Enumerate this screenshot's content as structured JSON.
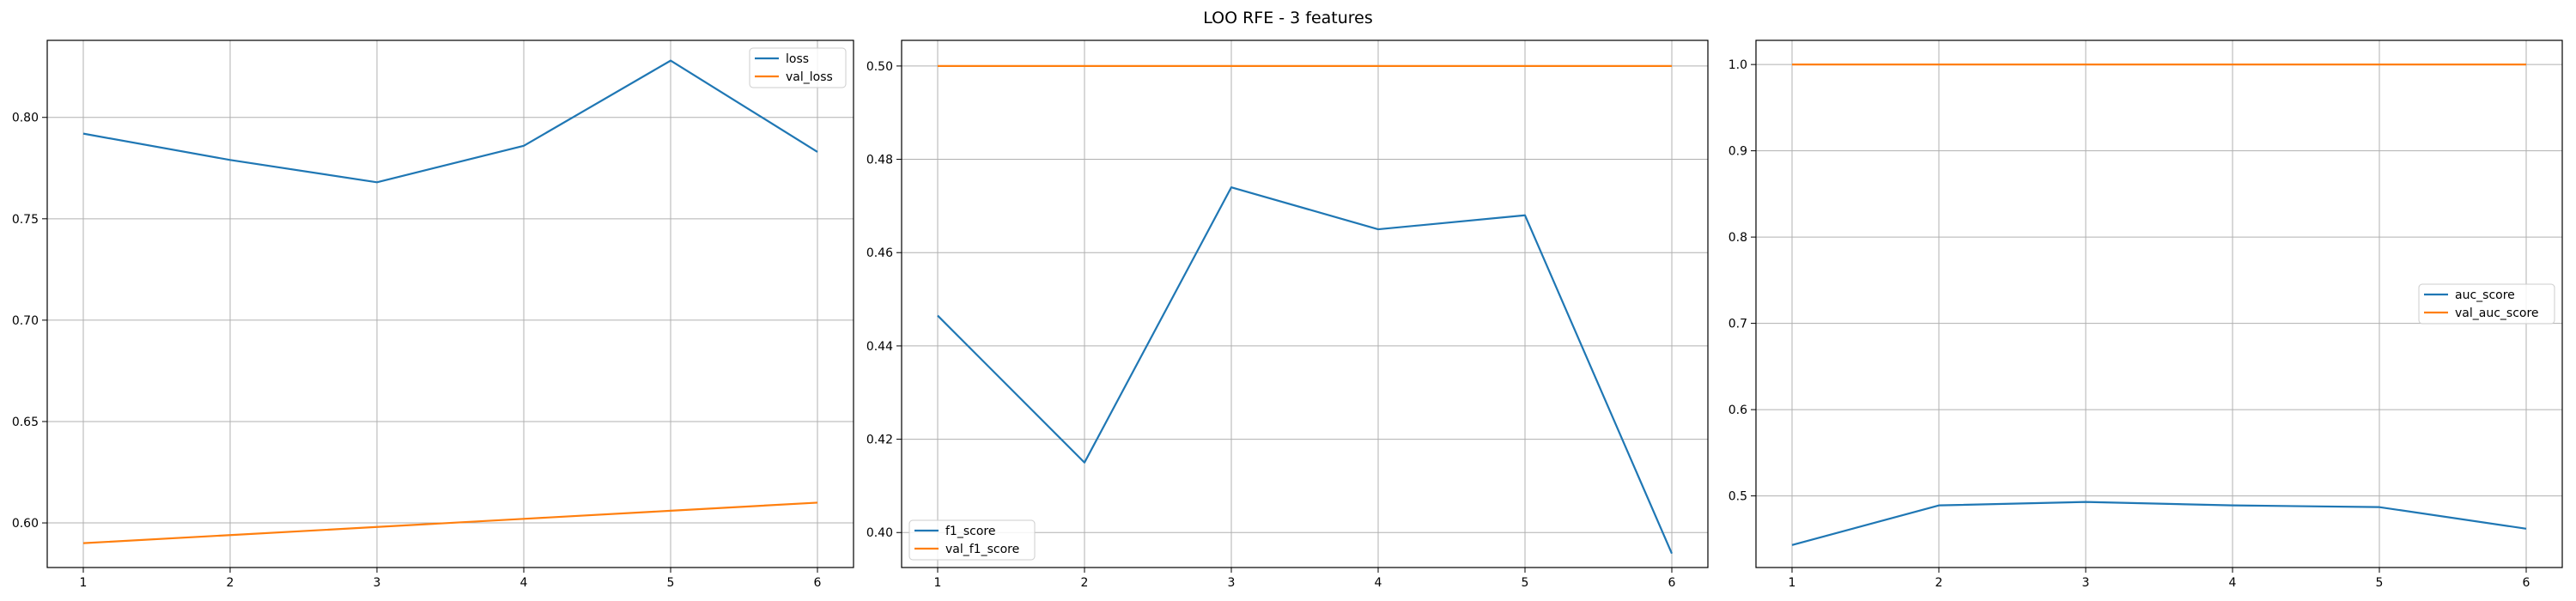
{
  "figure_title": "LOO RFE - 3 features",
  "colors": {
    "series1": "#1f77b4",
    "series2": "#ff7f0e",
    "grid": "#b0b0b0",
    "axis": "#000000"
  },
  "chart_data": [
    {
      "type": "line",
      "x": [
        1,
        2,
        3,
        4,
        5,
        6
      ],
      "xticks": [
        "1",
        "2",
        "3",
        "4",
        "5",
        "6"
      ],
      "ylim": [
        0.578,
        0.838
      ],
      "yticks": [
        "0.60",
        "0.65",
        "0.70",
        "0.75",
        "0.80"
      ],
      "ytick_values": [
        0.6,
        0.65,
        0.7,
        0.75,
        0.8
      ],
      "grid": true,
      "legend_position": "upper-right",
      "series": [
        {
          "name": "loss",
          "values": [
            0.792,
            0.779,
            0.768,
            0.786,
            0.828,
            0.783
          ]
        },
        {
          "name": "val_loss",
          "values": [
            0.59,
            0.594,
            0.598,
            0.602,
            0.606,
            0.61
          ]
        }
      ]
    },
    {
      "type": "line",
      "x": [
        1,
        2,
        3,
        4,
        5,
        6
      ],
      "xticks": [
        "1",
        "2",
        "3",
        "4",
        "5",
        "6"
      ],
      "ylim": [
        0.3925,
        0.5055
      ],
      "yticks": [
        "0.40",
        "0.42",
        "0.44",
        "0.46",
        "0.48",
        "0.50"
      ],
      "ytick_values": [
        0.4,
        0.42,
        0.44,
        0.46,
        0.48,
        0.5
      ],
      "grid": true,
      "legend_position": "lower-left",
      "series": [
        {
          "name": "f1_score",
          "values": [
            0.4465,
            0.415,
            0.474,
            0.465,
            0.468,
            0.3955
          ]
        },
        {
          "name": "val_f1_score",
          "values": [
            0.5,
            0.5,
            0.5,
            0.5,
            0.5,
            0.5
          ]
        }
      ]
    },
    {
      "type": "line",
      "x": [
        1,
        2,
        3,
        4,
        5,
        6
      ],
      "xticks": [
        "1",
        "2",
        "3",
        "4",
        "5",
        "6"
      ],
      "ylim": [
        0.417,
        1.028
      ],
      "yticks": [
        "0.5",
        "0.6",
        "0.7",
        "0.8",
        "0.9",
        "1.0"
      ],
      "ytick_values": [
        0.5,
        0.6,
        0.7,
        0.8,
        0.9,
        1.0
      ],
      "grid": true,
      "legend_position": "center-right",
      "series": [
        {
          "name": "auc_score",
          "values": [
            0.443,
            0.489,
            0.493,
            0.489,
            0.487,
            0.462
          ]
        },
        {
          "name": "val_auc_score",
          "values": [
            1.0,
            1.0,
            1.0,
            1.0,
            1.0,
            1.0
          ]
        }
      ]
    }
  ]
}
